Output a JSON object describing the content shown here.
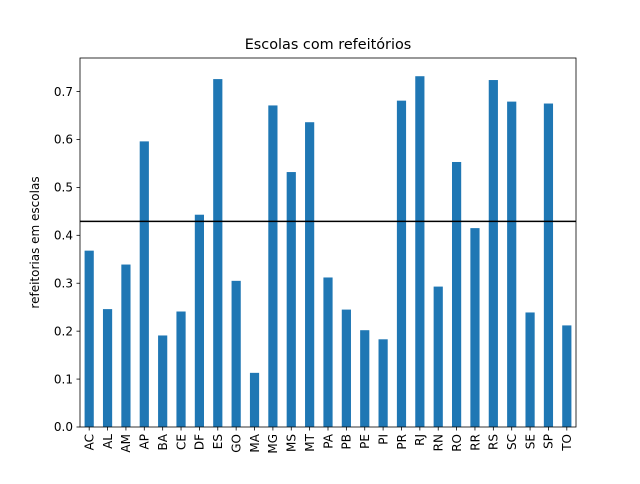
{
  "chart_data": {
    "type": "bar",
    "title": "Escolas com refeitórios",
    "xlabel": "",
    "ylabel": "refeitorias em escolas",
    "categories": [
      "AC",
      "AL",
      "AM",
      "AP",
      "BA",
      "CE",
      "DF",
      "ES",
      "GO",
      "MA",
      "MG",
      "MS",
      "MT",
      "PA",
      "PB",
      "PE",
      "PI",
      "PR",
      "RJ",
      "RN",
      "RO",
      "RR",
      "RS",
      "SC",
      "SE",
      "SP",
      "TO"
    ],
    "values": [
      0.368,
      0.246,
      0.339,
      0.596,
      0.191,
      0.241,
      0.443,
      0.726,
      0.305,
      0.113,
      0.671,
      0.532,
      0.636,
      0.312,
      0.245,
      0.202,
      0.183,
      0.681,
      0.732,
      0.293,
      0.553,
      0.415,
      0.724,
      0.679,
      0.239,
      0.675,
      0.212
    ],
    "ylim": [
      0.0,
      0.77
    ],
    "yticks": [
      "0.0",
      "0.1",
      "0.2",
      "0.3",
      "0.4",
      "0.5",
      "0.6",
      "0.7"
    ],
    "reference_line": 0.429,
    "bar_color": "#1f77b4",
    "line_color": "#000000",
    "grid": false
  }
}
